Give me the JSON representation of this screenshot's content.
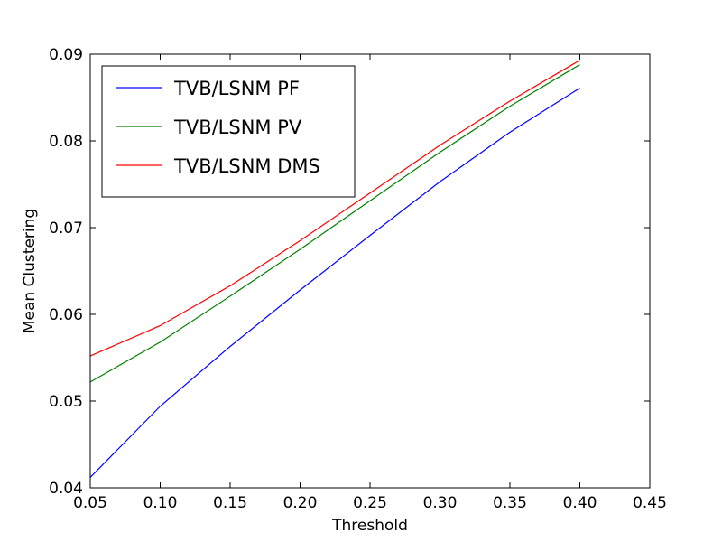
{
  "chart_data": {
    "type": "line",
    "xlabel": "Threshold",
    "ylabel": "Mean Clustering",
    "xlim": [
      0.05,
      0.45
    ],
    "ylim": [
      0.04,
      0.09
    ],
    "xticks": [
      "0.05",
      "0.10",
      "0.15",
      "0.20",
      "0.25",
      "0.30",
      "0.35",
      "0.40",
      "0.45"
    ],
    "yticks": [
      "0.04",
      "0.05",
      "0.06",
      "0.07",
      "0.08",
      "0.09"
    ],
    "grid": false,
    "legend_placement": "top-left",
    "x": [
      0.05,
      0.1,
      0.15,
      0.2,
      0.25,
      0.3,
      0.35,
      0.4
    ],
    "series": [
      {
        "name": "TVB/LSNM PF",
        "color": "#0000ff",
        "values": [
          0.0412,
          0.0494,
          0.0563,
          0.0628,
          0.0691,
          0.0753,
          0.081,
          0.0861
        ]
      },
      {
        "name": "TVB/LSNM PV",
        "color": "#008000",
        "values": [
          0.0522,
          0.0568,
          0.0621,
          0.0675,
          0.0731,
          0.0787,
          0.084,
          0.0888
        ]
      },
      {
        "name": "TVB/LSNM DMS",
        "color": "#ff0000",
        "values": [
          0.0552,
          0.0587,
          0.0633,
          0.0685,
          0.074,
          0.0795,
          0.0846,
          0.0893
        ]
      }
    ]
  }
}
